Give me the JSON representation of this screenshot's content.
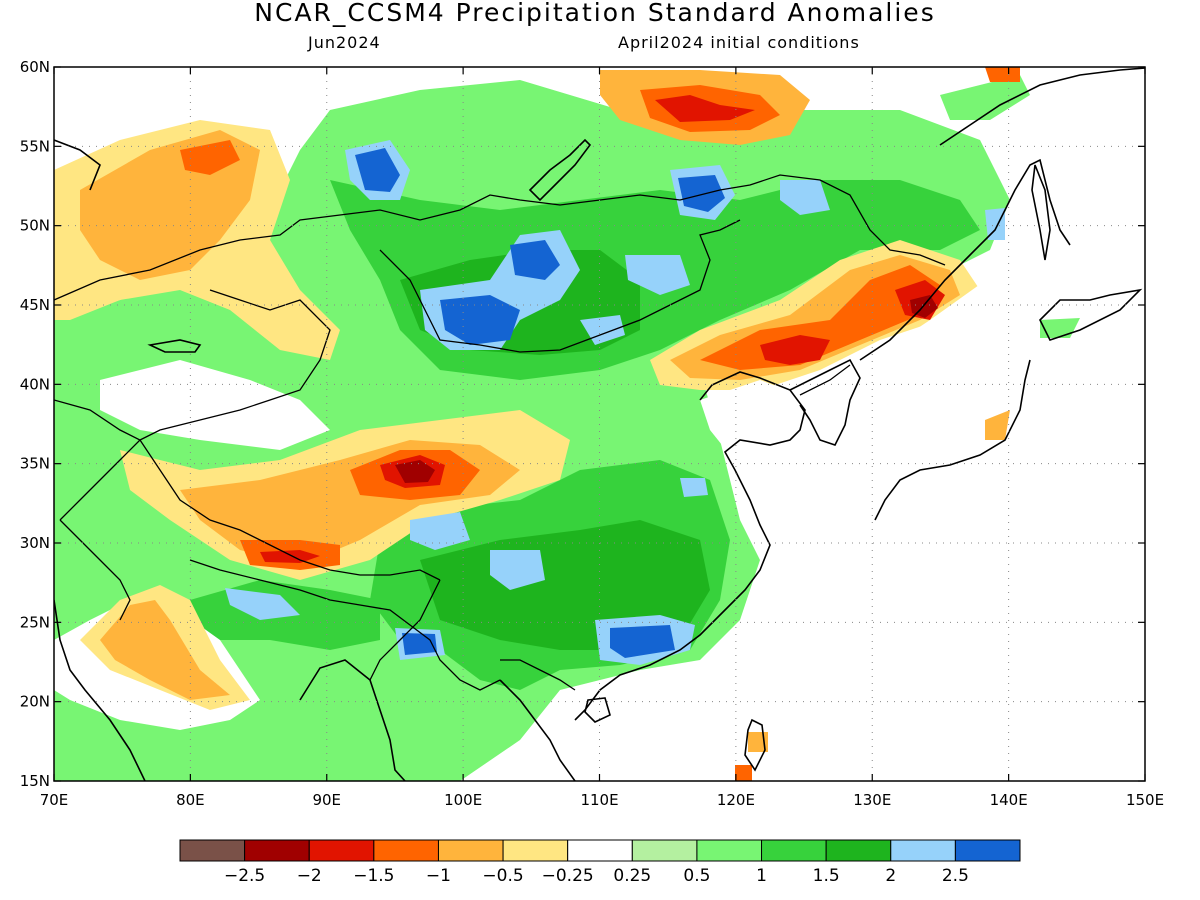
{
  "title": "NCAR_CCSM4 Precipitation Standard Anomalies",
  "subtitle_left": "Jun2024",
  "subtitle_right": "April2024 initial conditions",
  "y_ticks": [
    "60N",
    "55N",
    "50N",
    "45N",
    "40N",
    "35N",
    "30N",
    "25N",
    "20N",
    "15N"
  ],
  "x_ticks": [
    "70E",
    "80E",
    "90E",
    "100E",
    "110E",
    "120E",
    "130E",
    "140E",
    "150E"
  ],
  "colorbar": {
    "colors": [
      "#7a5148",
      "#a00000",
      "#e11400",
      "#ff6400",
      "#ffb43c",
      "#ffe682",
      "#ffffff",
      "#b4f0a0",
      "#78f573",
      "#37d23c",
      "#1eb41e",
      "#96d2fa",
      "#1464d2"
    ],
    "labels": [
      "-2.5",
      "-2",
      "-1.5",
      "-1",
      "-0.5",
      "-0.25",
      "0.25",
      "0.5",
      "1",
      "1.5",
      "2",
      "2.5"
    ]
  },
  "map_data": {
    "extent": {
      "lon": [
        70,
        150
      ],
      "lat": [
        15,
        60
      ]
    },
    "variable": "Precipitation standard anomaly",
    "regions": [
      {
        "lon": 98,
        "lat": 34.5,
        "level": -2.5
      },
      {
        "lon": 89,
        "lat": 29.5,
        "level": -1.5
      },
      {
        "lon": 124,
        "lat": 42,
        "level": -2
      },
      {
        "lon": 133,
        "lat": 45,
        "level": -2
      },
      {
        "lon": 116,
        "lat": 57,
        "level": -2
      },
      {
        "lon": 81,
        "lat": 53.5,
        "level": -1.5
      },
      {
        "lon": 75,
        "lat": 24,
        "level": -1
      },
      {
        "lon": 101,
        "lat": 44,
        "level": 2.5
      },
      {
        "lon": 105,
        "lat": 48,
        "level": 2.5
      },
      {
        "lon": 94,
        "lat": 53,
        "level": 2.5
      },
      {
        "lon": 117,
        "lat": 52,
        "level": 2.5
      },
      {
        "lon": 115,
        "lat": 23.5,
        "level": 2.5
      },
      {
        "lon": 96,
        "lat": 23,
        "level": 2.5
      },
      {
        "lon": 86,
        "lat": 26.5,
        "level": 2
      }
    ]
  }
}
